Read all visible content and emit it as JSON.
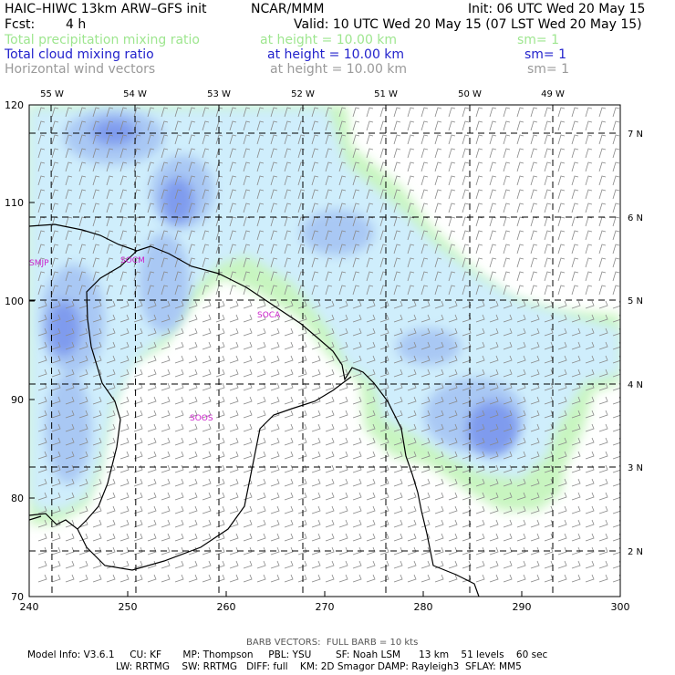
{
  "header": {
    "model": "HAIC–HIWC 13km ARW–GFS init",
    "org": "NCAR/MMM",
    "init": "Init: 06 UTC Wed 20 May 15",
    "fcst_label": "Fcst:",
    "fcst_value": "4 h",
    "valid": "Valid: 10 UTC Wed 20 May 15 (07 LST Wed 20 May 15)"
  },
  "fields": [
    {
      "name": "Total precipitation mixing ratio",
      "height": "at height = 10.00 km",
      "sm": "sm= 1",
      "color": "#9ee68f"
    },
    {
      "name": "Total cloud mixing ratio",
      "height": "at height = 10.00 km",
      "sm": "sm= 1",
      "color": "#2222cc"
    },
    {
      "name": "Horizontal wind vectors",
      "height": "at height = 10.00 km",
      "sm": "sm= 1",
      "color": "#9a9a9a"
    }
  ],
  "axes": {
    "bottom_ticks": [
      "240",
      "250",
      "260",
      "270",
      "280",
      "290",
      "300"
    ],
    "left_ticks": [
      "70",
      "80",
      "90",
      "100",
      "110",
      "120"
    ],
    "top_lon": [
      "55 W",
      "54 W",
      "53 W",
      "52 W",
      "51 W",
      "50 W",
      "49 W"
    ],
    "right_lat": [
      "2 N",
      "3 N",
      "4 N",
      "5 N",
      "6 N",
      "7 N"
    ]
  },
  "stations": [
    "SMJP",
    "SOCM",
    "SOCA",
    "SOOS"
  ],
  "barb_note": "BARB VECTORS:  FULL BARB = 10 kts",
  "model_info": {
    "line1": "Model Info: V3.6.1     CU: KF       MP: Thompson     PBL: YSU        SF: Noah LSM      13 km    51 levels    60 sec",
    "line2": "LW: RRTMG    SW: RRTMG   DIFF: full    KM: 2D Smagor DAMP: Rayleigh3  SFLAY: MM5"
  },
  "colors": {
    "precip": "#c8f5c0",
    "cloud_light": "#cfeefc",
    "cloud_mid": "#a9c8f4",
    "cloud_dark": "#7f9bee",
    "station": "#cc22cc",
    "barb": "#8a8a8a"
  }
}
